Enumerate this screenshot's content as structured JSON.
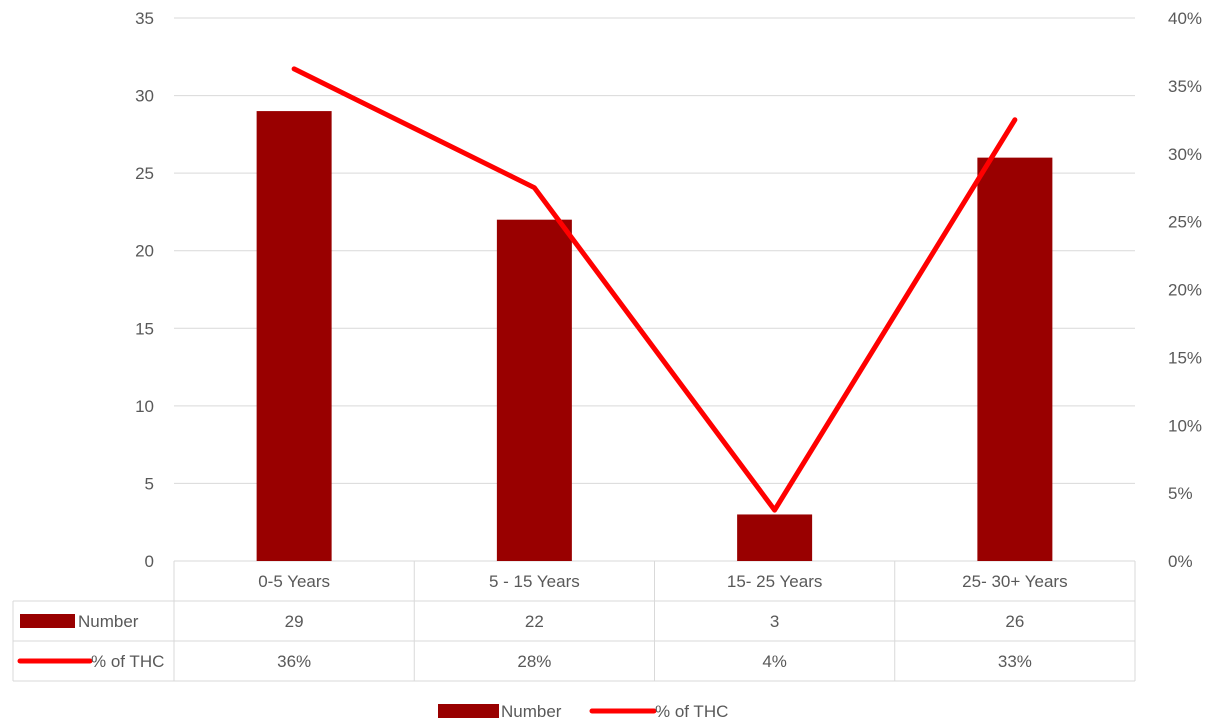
{
  "chart_data": {
    "type": "bar",
    "categories": [
      "0-5 Years",
      "5 - 15 Years",
      "15- 25 Years",
      "25- 30+ Years"
    ],
    "series": [
      {
        "name": "Number",
        "type": "bar",
        "axis": "left",
        "color": "#990000",
        "values": [
          29,
          22,
          3,
          26
        ]
      },
      {
        "name": "% of THC",
        "type": "line",
        "axis": "right",
        "color": "#ff0000",
        "values": [
          36.25,
          27.5,
          3.75,
          32.5
        ]
      }
    ],
    "table": {
      "rows": [
        {
          "label": "Number",
          "values": [
            "29",
            "22",
            "3",
            "26"
          ]
        },
        {
          "label": "% of THC",
          "values": [
            "36%",
            "28%",
            "4%",
            "33%"
          ]
        }
      ]
    },
    "y_left": {
      "ylim": [
        0,
        35
      ],
      "ticks": [
        "0",
        "5",
        "10",
        "15",
        "20",
        "25",
        "30",
        "35"
      ]
    },
    "y_right": {
      "ylim": [
        0,
        40
      ],
      "ticks": [
        "0%",
        "5%",
        "10%",
        "15%",
        "20%",
        "25%",
        "30%",
        "35%",
        "40%"
      ]
    },
    "grid": true,
    "legend": {
      "position": "bottom",
      "items": [
        "Number",
        "% of THC"
      ]
    },
    "title": "",
    "xlabel": "",
    "ylabel": ""
  }
}
